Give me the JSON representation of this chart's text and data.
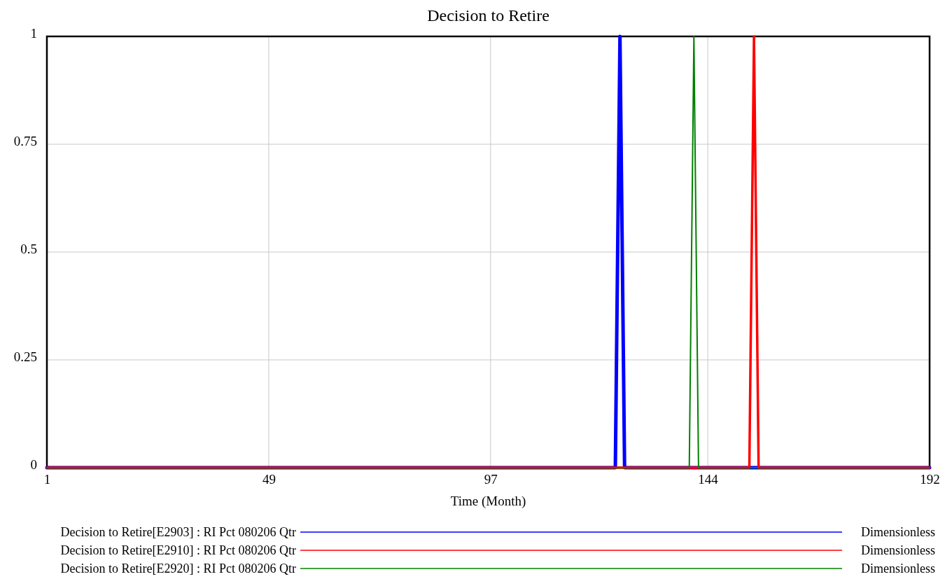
{
  "chart_data": {
    "type": "line",
    "title": "Decision to Retire",
    "xlabel": "Time (Month)",
    "xlim": [
      1,
      192
    ],
    "xticks": [
      1,
      49,
      97,
      144,
      192
    ],
    "ylim": [
      0,
      1
    ],
    "yticks": [
      0,
      0.25,
      0.5,
      0.75,
      1
    ],
    "grid": true,
    "legend": "bottom",
    "series": [
      {
        "name": "Decision to Retire[E2903] : RI Pct 080206 Qtr",
        "color": "#0000ff",
        "x": [
          1,
          124,
          125,
          126,
          192
        ],
        "values": [
          0,
          0,
          1,
          0,
          0
        ]
      },
      {
        "name": "Decision to Retire[E2910] : RI Pct 080206 Qtr",
        "color": "#ff0000",
        "x": [
          1,
          153,
          154,
          155,
          192
        ],
        "values": [
          0,
          0,
          1,
          0,
          0
        ]
      },
      {
        "name": "Decision to Retire[E2920] : RI Pct 080206 Qtr",
        "color": "#008000",
        "x": [
          1,
          140,
          141,
          142,
          192
        ],
        "values": [
          0,
          0,
          1,
          0,
          0
        ]
      }
    ],
    "annotations": [
      "Dimensionless",
      "Dimensionless",
      "Dimensionless"
    ]
  }
}
